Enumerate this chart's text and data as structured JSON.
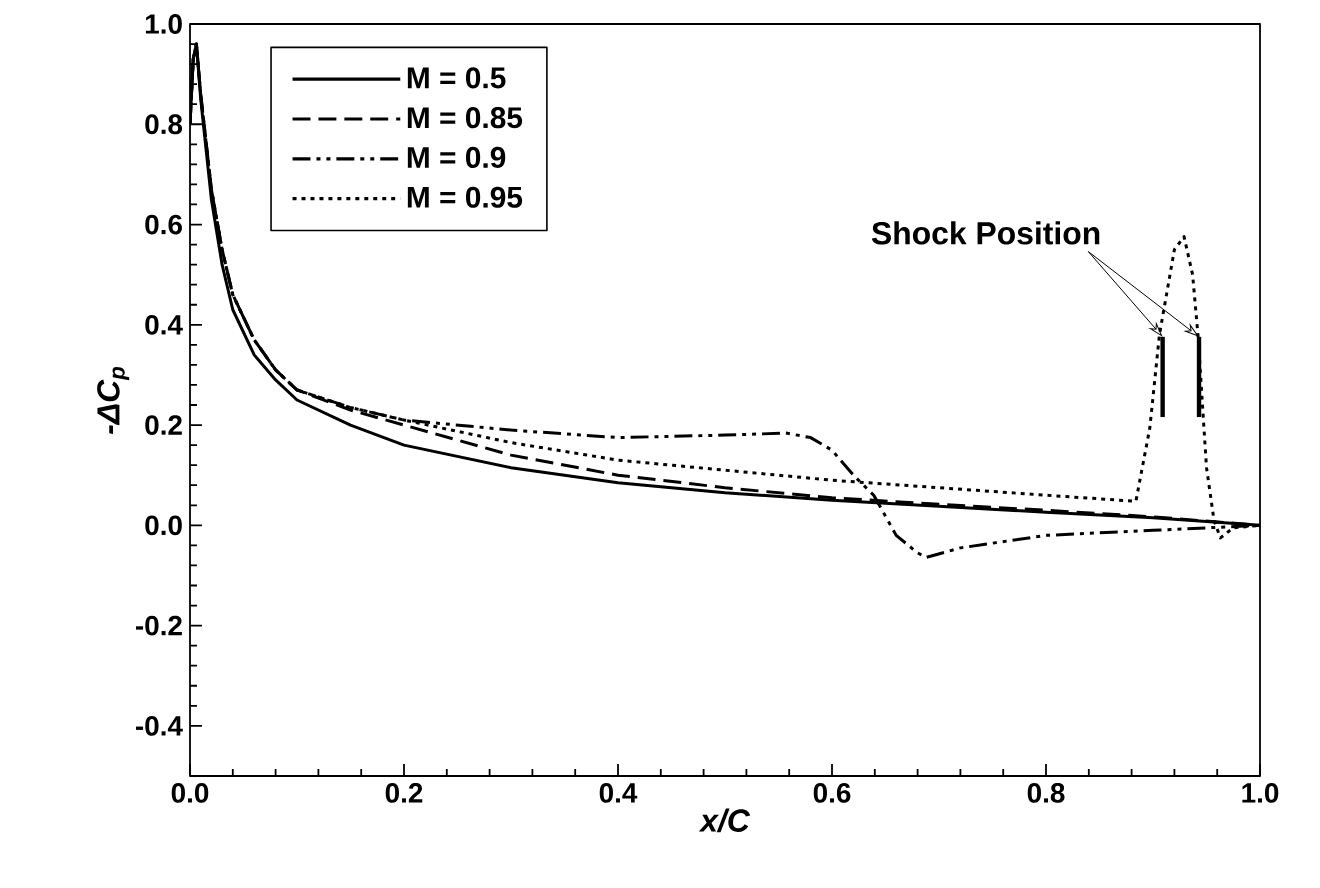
{
  "chart_data": {
    "type": "line",
    "xlabel": "x/C",
    "ylabel": "-ΔC$_{p}$",
    "xlim": [
      0,
      1.0
    ],
    "ylim": [
      -0.5,
      1.0
    ],
    "xticks": [
      {
        "value": 0,
        "label": "0.0"
      },
      {
        "value": 0.2,
        "label": "0.2"
      },
      {
        "value": 0.4,
        "label": "0.4"
      },
      {
        "value": 0.6,
        "label": "0.6"
      },
      {
        "value": 0.8,
        "label": "0.8"
      },
      {
        "value": 1.0,
        "label": "1.0"
      }
    ],
    "yticks": [
      {
        "value": -0.4,
        "label": "-0.4"
      },
      {
        "value": -0.2,
        "label": "-0.2"
      },
      {
        "value": 0,
        "label": "0.0"
      },
      {
        "value": 0.2,
        "label": "0.2"
      },
      {
        "value": 0.4,
        "label": "0.4"
      },
      {
        "value": 0.6,
        "label": "0.6"
      },
      {
        "value": 0.8,
        "label": "0.8"
      },
      {
        "value": 1.0,
        "label": "1.0"
      }
    ],
    "grid": false,
    "legend": "top left",
    "annotations": [
      {
        "text": "Shock Position",
        "x": 0.909,
        "y": 0.376
      }
    ],
    "series": [
      {
        "name": "M = 0.5",
        "color": "#000000",
        "line_style": "solid",
        "x": [
          0,
          0.003,
          0.006,
          0.01,
          0.02,
          0.03,
          0.04,
          0.06,
          0.08,
          0.1,
          0.15,
          0.2,
          0.3,
          0.4,
          0.5,
          0.6,
          0.7,
          0.8,
          0.9,
          1.0
        ],
        "values": [
          0.8,
          0.93,
          0.96,
          0.85,
          0.65,
          0.52,
          0.43,
          0.34,
          0.29,
          0.25,
          0.2,
          0.16,
          0.115,
          0.085,
          0.065,
          0.05,
          0.038,
          0.026,
          0.015,
          0.0
        ]
      },
      {
        "name": "M = 0.85",
        "color": "#000000",
        "line_style": "dashed",
        "x": [
          0,
          0.003,
          0.006,
          0.01,
          0.02,
          0.03,
          0.04,
          0.06,
          0.08,
          0.1,
          0.15,
          0.2,
          0.3,
          0.4,
          0.5,
          0.6,
          0.7,
          0.8,
          0.9,
          1.0
        ],
        "values": [
          0.8,
          0.93,
          0.96,
          0.86,
          0.67,
          0.55,
          0.46,
          0.37,
          0.31,
          0.27,
          0.23,
          0.2,
          0.14,
          0.1,
          0.075,
          0.055,
          0.042,
          0.03,
          0.017,
          0.0
        ]
      },
      {
        "name": "M = 0.9",
        "color": "#000000",
        "line_style": "dashdotdotted",
        "x": [
          0,
          0.003,
          0.006,
          0.01,
          0.02,
          0.03,
          0.04,
          0.06,
          0.08,
          0.1,
          0.15,
          0.2,
          0.3,
          0.4,
          0.5,
          0.557,
          0.58,
          0.6,
          0.62,
          0.639,
          0.66,
          0.68,
          0.688,
          0.72,
          0.8,
          0.9,
          1.0
        ],
        "values": [
          0.8,
          0.93,
          0.96,
          0.86,
          0.67,
          0.55,
          0.46,
          0.37,
          0.31,
          0.27,
          0.235,
          0.21,
          0.19,
          0.175,
          0.18,
          0.184,
          0.175,
          0.15,
          0.1,
          0.06,
          -0.02,
          -0.055,
          -0.064,
          -0.045,
          -0.02,
          -0.01,
          0.0
        ]
      },
      {
        "name": "M = 0.95",
        "color": "#000000",
        "line_style": "dotted",
        "x": [
          0,
          0.003,
          0.006,
          0.01,
          0.02,
          0.03,
          0.04,
          0.06,
          0.08,
          0.1,
          0.15,
          0.2,
          0.3,
          0.4,
          0.5,
          0.6,
          0.7,
          0.8,
          0.884,
          0.897,
          0.906,
          0.92,
          0.929,
          0.937,
          0.942,
          0.95,
          0.957,
          0.963,
          0.975,
          1.0
        ],
        "values": [
          0.8,
          0.93,
          0.96,
          0.86,
          0.67,
          0.55,
          0.46,
          0.37,
          0.31,
          0.27,
          0.235,
          0.21,
          0.165,
          0.13,
          0.11,
          0.09,
          0.075,
          0.06,
          0.048,
          0.194,
          0.38,
          0.55,
          0.576,
          0.5,
          0.38,
          0.115,
          0.01,
          -0.025,
          -0.005,
          0.0
        ]
      },
      {
        "color": "#000000",
        "line_style": "solid",
        "x": [
          0.909,
          0.909
        ],
        "values": [
          0.216,
          0.376
        ]
      },
      {
        "color": "#000000",
        "line_style": "solid",
        "x": [
          0.943,
          0.943
        ],
        "values": [
          0.216,
          0.376
        ]
      }
    ]
  }
}
